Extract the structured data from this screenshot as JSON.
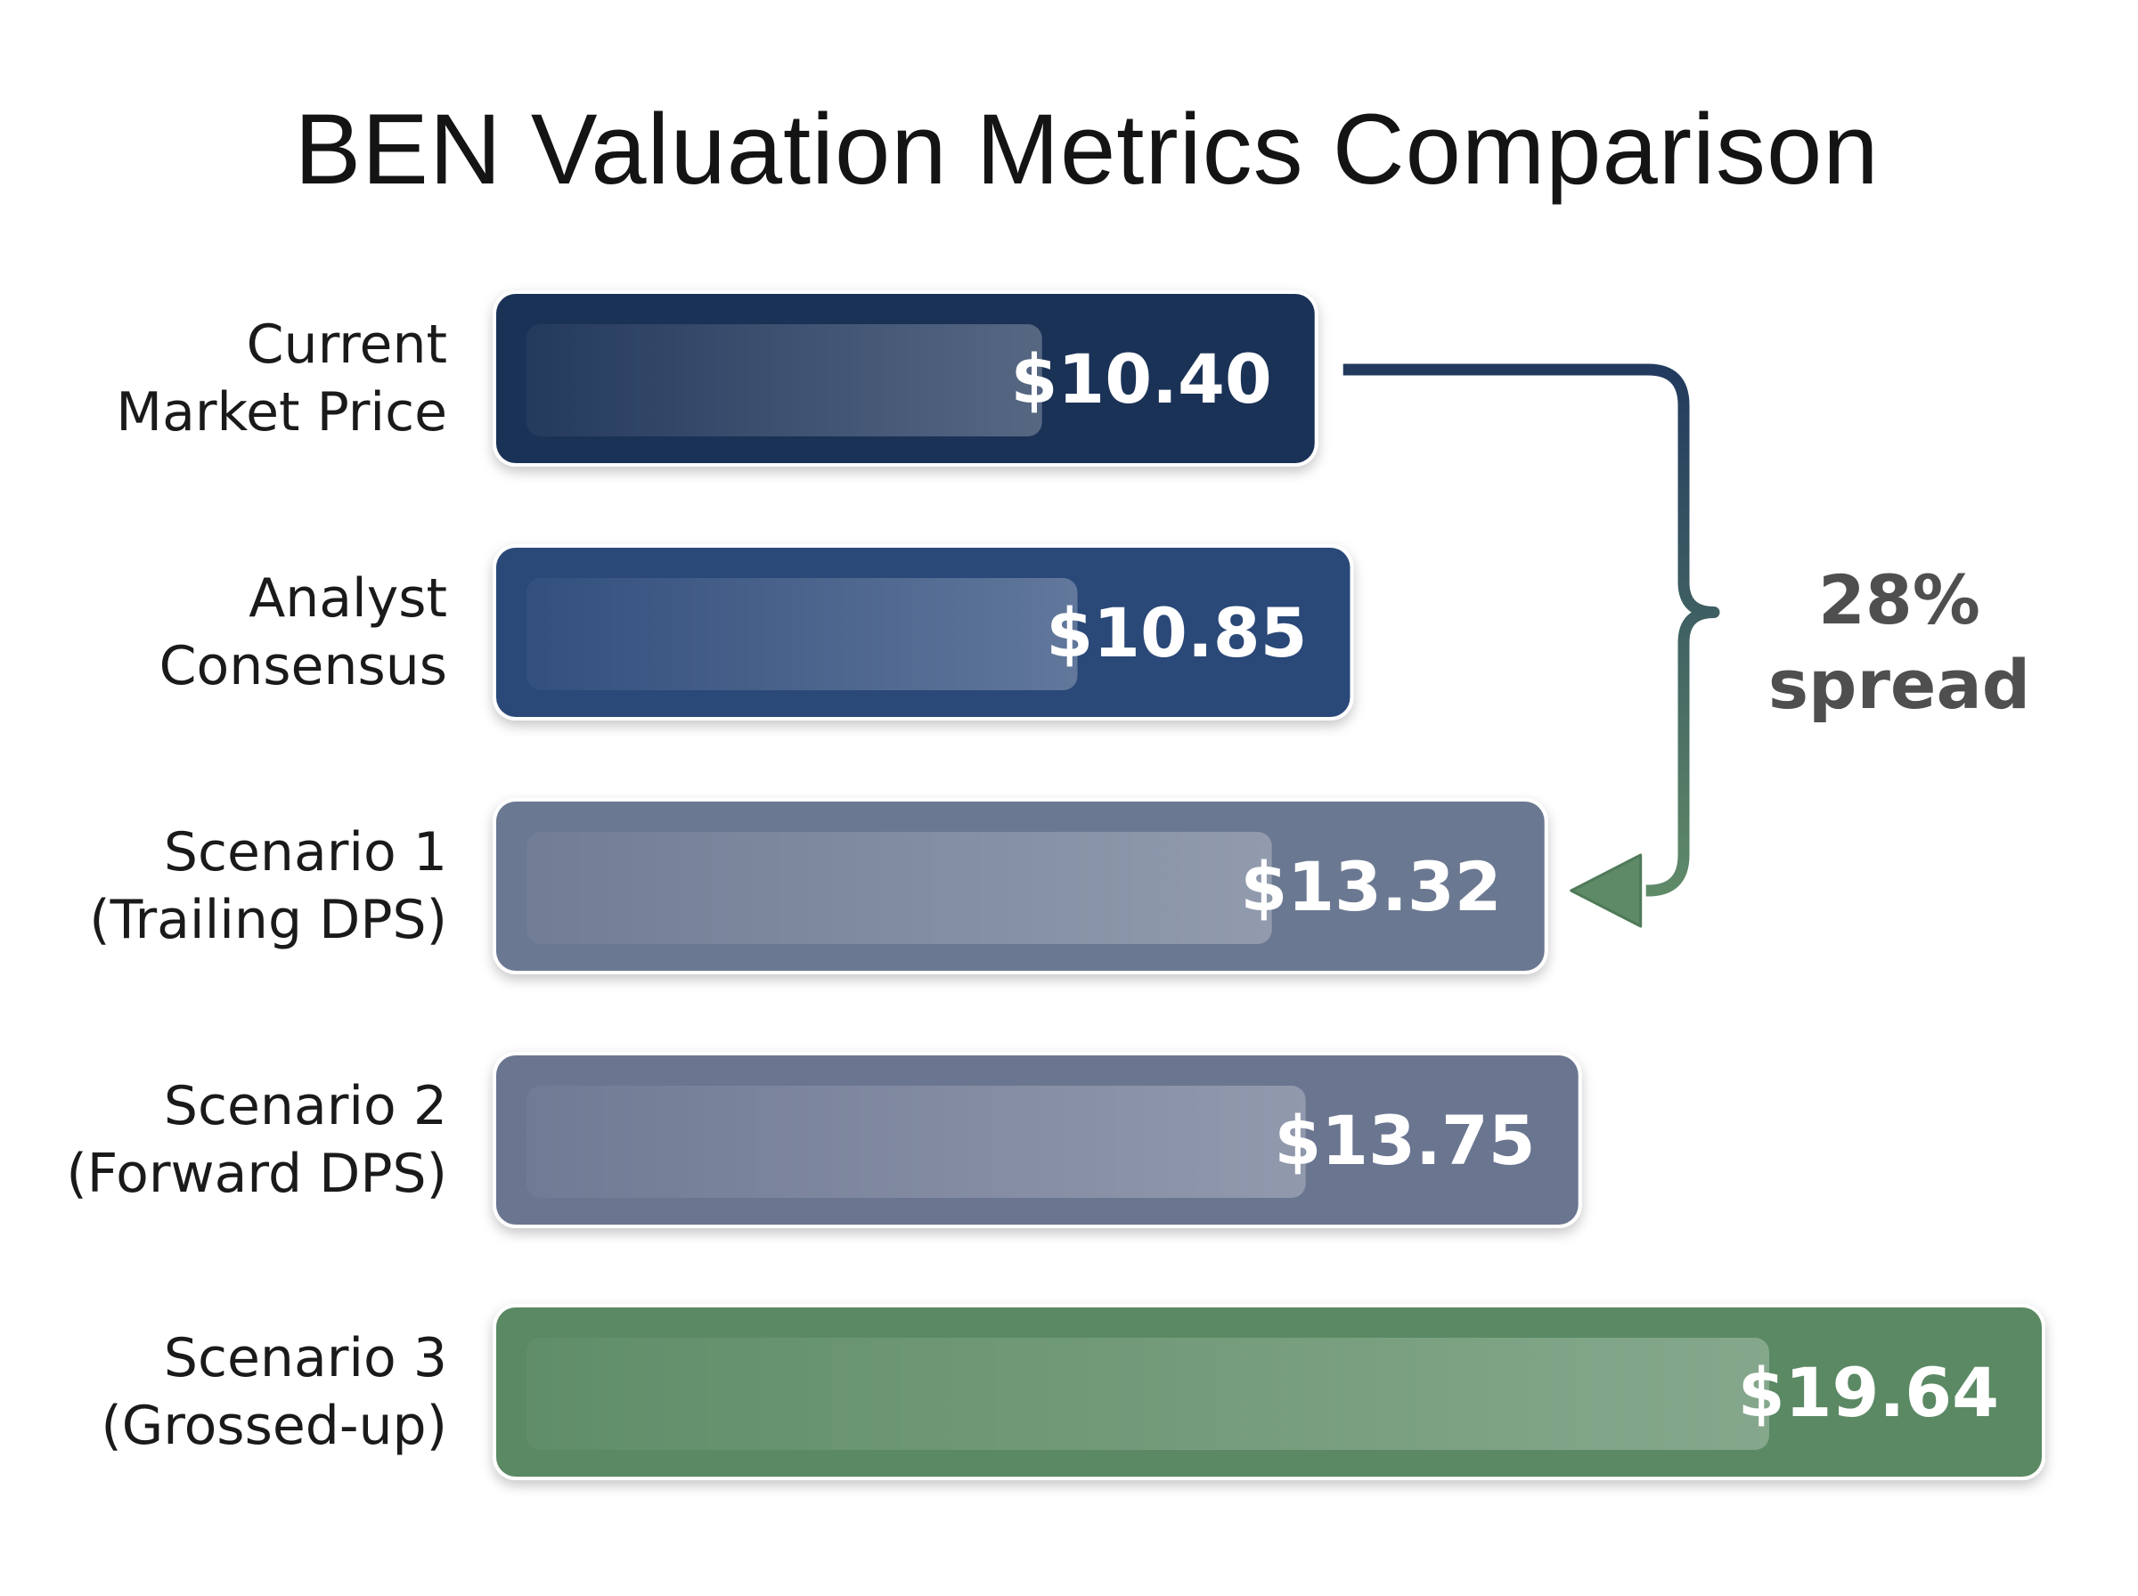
{
  "chart_data": {
    "type": "bar",
    "orientation": "horizontal",
    "title": "BEN Valuation Metrics Comparison",
    "categories": [
      [
        "Current",
        "Market Price"
      ],
      [
        "Analyst",
        "Consensus"
      ],
      [
        "Scenario 1",
        "(Trailing DPS)"
      ],
      [
        "Scenario 2",
        "(Forward DPS)"
      ],
      [
        "Scenario 3",
        "(Grossed-up)"
      ]
    ],
    "values": [
      10.4,
      10.85,
      13.32,
      13.75,
      19.64
    ],
    "value_labels": [
      "$10.40",
      "$10.85",
      "$13.32",
      "$13.75",
      "$19.64"
    ],
    "colors": [
      "#1b3257",
      "#2a4878",
      "#6b7891",
      "#6a7590",
      "#5a8963"
    ],
    "grid": false,
    "legend": "none",
    "annotation": {
      "text": [
        "28%",
        "spread"
      ],
      "from_index": 0,
      "to_index": 2,
      "colors": [
        "#223a5e",
        "#5f8a68"
      ]
    }
  }
}
